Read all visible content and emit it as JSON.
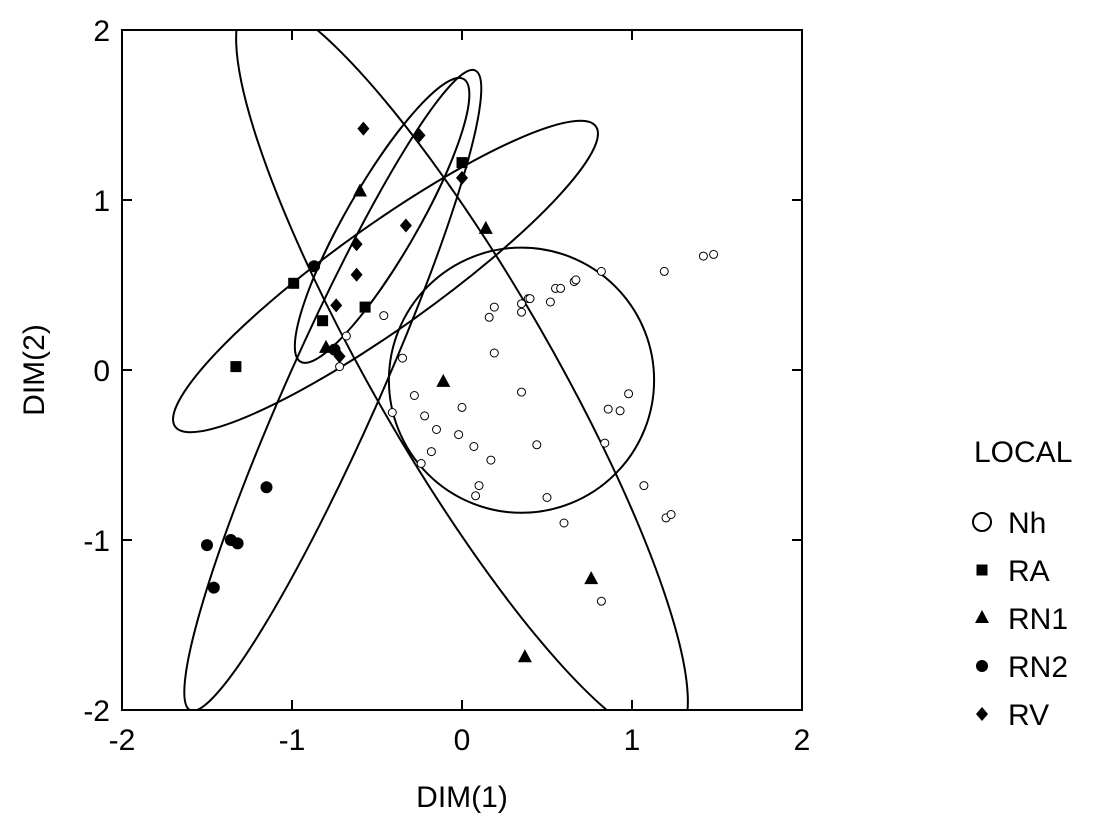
{
  "chart_data": {
    "type": "scatter",
    "title": "",
    "xlabel": "DIM(1)",
    "ylabel": "DIM(2)",
    "xlim": [
      -2,
      2
    ],
    "ylim": [
      -2,
      2
    ],
    "xticks": [
      -2,
      -1,
      0,
      1,
      2
    ],
    "yticks": [
      -2,
      -1,
      0,
      1,
      2
    ],
    "xtick_labels": [
      "-2",
      "-1",
      "0",
      "1",
      "2"
    ],
    "ytick_labels": [
      "-2",
      "-1",
      "0",
      "1",
      "2"
    ],
    "grid": false,
    "legend": {
      "title": "LOCAL",
      "placement": "right",
      "entries": [
        "Nh",
        "RA",
        "RN1",
        "RN2",
        "RV"
      ]
    },
    "series": [
      {
        "name": "Nh",
        "marker": "open-circle",
        "size": "small",
        "points": [
          [
            -0.68,
            0.2
          ],
          [
            -0.72,
            0.02
          ],
          [
            -0.46,
            0.32
          ],
          [
            -0.35,
            0.07
          ],
          [
            -0.28,
            -0.15
          ],
          [
            -0.41,
            -0.25
          ],
          [
            -0.22,
            -0.27
          ],
          [
            -0.15,
            -0.35
          ],
          [
            -0.18,
            -0.48
          ],
          [
            -0.24,
            -0.55
          ],
          [
            -0.02,
            -0.38
          ],
          [
            0.0,
            -0.22
          ],
          [
            0.07,
            -0.45
          ],
          [
            0.17,
            -0.53
          ],
          [
            0.1,
            -0.68
          ],
          [
            0.08,
            -0.74
          ],
          [
            0.16,
            0.31
          ],
          [
            0.19,
            0.37
          ],
          [
            0.19,
            0.1
          ],
          [
            0.35,
            0.34
          ],
          [
            0.35,
            0.39
          ],
          [
            0.39,
            0.42
          ],
          [
            0.4,
            0.42
          ],
          [
            0.52,
            0.4
          ],
          [
            0.55,
            0.48
          ],
          [
            0.58,
            0.48
          ],
          [
            0.66,
            0.52
          ],
          [
            0.67,
            0.53
          ],
          [
            0.82,
            0.58
          ],
          [
            0.35,
            -0.13
          ],
          [
            0.44,
            -0.44
          ],
          [
            0.5,
            -0.75
          ],
          [
            0.6,
            -0.9
          ],
          [
            0.84,
            -0.43
          ],
          [
            0.86,
            -0.23
          ],
          [
            0.93,
            -0.24
          ],
          [
            0.98,
            -0.14
          ],
          [
            1.07,
            -0.68
          ],
          [
            1.19,
            0.58
          ],
          [
            1.2,
            -0.87
          ],
          [
            1.23,
            -0.85
          ],
          [
            1.42,
            0.67
          ],
          [
            1.48,
            0.68
          ],
          [
            0.82,
            -1.36
          ]
        ]
      },
      {
        "name": "RA",
        "marker": "filled-square",
        "size": "large",
        "points": [
          [
            -1.33,
            0.02
          ],
          [
            -0.99,
            0.51
          ],
          [
            -0.82,
            0.29
          ],
          [
            -0.57,
            0.37
          ],
          [
            0.0,
            1.22
          ]
        ]
      },
      {
        "name": "RN1",
        "marker": "filled-triangle",
        "size": "large",
        "points": [
          [
            -0.8,
            0.13
          ],
          [
            -0.6,
            1.05
          ],
          [
            -0.11,
            -0.07
          ],
          [
            0.14,
            0.83
          ],
          [
            0.76,
            -1.23
          ],
          [
            0.37,
            -1.69
          ]
        ]
      },
      {
        "name": "RN2",
        "marker": "filled-circle",
        "size": "large",
        "points": [
          [
            -0.87,
            0.61
          ],
          [
            -0.75,
            0.12
          ],
          [
            -1.15,
            -0.69
          ],
          [
            -1.5,
            -1.03
          ],
          [
            -1.36,
            -1.0
          ],
          [
            -1.32,
            -1.02
          ],
          [
            -1.46,
            -1.28
          ]
        ]
      },
      {
        "name": "RV",
        "marker": "filled-diamond",
        "size": "large",
        "points": [
          [
            -0.58,
            1.42
          ],
          [
            -0.25,
            1.38
          ],
          [
            0.0,
            1.13
          ],
          [
            -0.33,
            0.85
          ],
          [
            -0.62,
            0.74
          ],
          [
            -0.62,
            0.56
          ],
          [
            -0.74,
            0.38
          ],
          [
            -0.72,
            0.08
          ]
        ]
      }
    ],
    "ellipses": [
      {
        "group": "Nh",
        "cx": 0.35,
        "cy": -0.06,
        "rx": 0.78,
        "ry": 0.78,
        "angle": 0
      },
      {
        "group": "RA",
        "cx": -0.45,
        "cy": 0.55,
        "rx": 1.52,
        "ry": 0.3,
        "angle": 35.5
      },
      {
        "group": "RN1",
        "cx": 0.0,
        "cy": 0.0,
        "rx": 2.5,
        "ry": 0.52,
        "angle": -60
      },
      {
        "group": "RN2",
        "cx": -0.76,
        "cy": -0.12,
        "rx": 2.06,
        "ry": 0.27,
        "angle": 66
      },
      {
        "group": "RV",
        "cx": -0.47,
        "cy": 0.88,
        "rx": 0.96,
        "ry": 0.21,
        "angle": 60
      }
    ]
  }
}
